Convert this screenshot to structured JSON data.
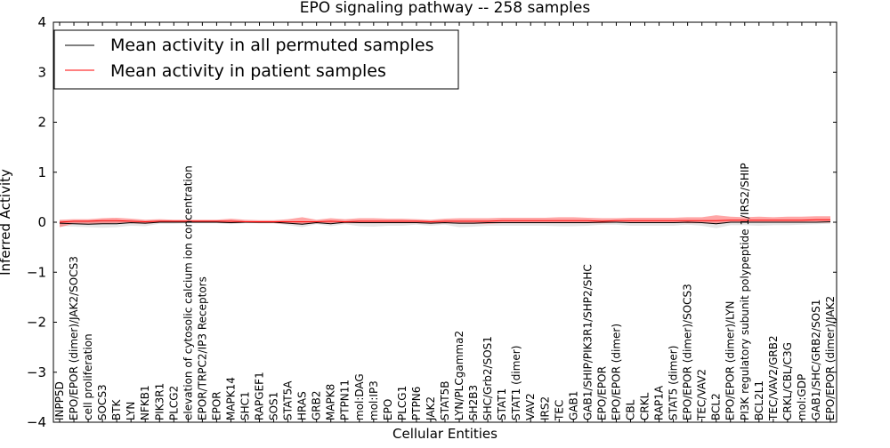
{
  "chart_data": {
    "type": "line",
    "title": "EPO signaling pathway -- 258 samples",
    "xlabel": "Cellular Entities",
    "ylabel": "Inferred Activity",
    "ylim": [
      -4,
      4
    ],
    "yticks": [
      -4,
      -3,
      -2,
      -1,
      0,
      1,
      2,
      3,
      4
    ],
    "ytick_labels": [
      "−4",
      "−3",
      "−2",
      "−1",
      "0",
      "1",
      "2",
      "3",
      "4"
    ],
    "grid": false,
    "legend_position": "top-left",
    "categories": [
      "INPP5D",
      "EPO/EPOR (dimer)/JAK2/SOCS3",
      "cell proliferation",
      "SOCS3",
      "BTK",
      "LYN",
      "NFKB1",
      "PIK3R1",
      "PLCG2",
      "elevation of cytosolic calcium ion concentration",
      "EPOR/TRPC2/IP3 Receptors",
      "EPOR",
      "MAPK14",
      "SHC1",
      "RAPGEF1",
      "SOS1",
      "STAT5A",
      "HRAS",
      "GRB2",
      "MAPK8",
      "PTPN11",
      "mol:DAG",
      "mol:IP3",
      "EPO",
      "PLCG1",
      "PTPN6",
      "JAK2",
      "STAT5B",
      "LYN/PLCgamma2",
      "SH2B3",
      "SHC/Grb2/SOS1",
      "STAT1",
      "STAT1 (dimer)",
      "VAV2",
      "IRS2",
      "TEC",
      "GAB1",
      "GAB1/SHIP/PIK3R1/SHP2/SHC",
      "EPO/EPOR",
      "EPO/EPOR (dimer)",
      "CBL",
      "CRKL",
      "RAP1A",
      "STAT5 (dimer)",
      "EPO/EPOR (dimer)/SOCS3",
      "TEC/VAV2",
      "BCL2",
      "EPO/EPOR (dimer)/LYN",
      "PI3K regulatory subunit polypeptide 1/IRS2/SHIP",
      "BCL2L1",
      "TEC/VAV2/GRB2",
      "CRKL/CBL/C3G",
      "mol:GDP",
      "GAB1/SHC/GRB2/SOS1",
      "EPO/EPOR (dimer)/JAK2"
    ],
    "series": [
      {
        "name": "Mean activity in all permuted samples",
        "color": "#000000",
        "values": [
          -0.02,
          -0.03,
          -0.04,
          -0.03,
          -0.03,
          -0.01,
          -0.02,
          0.0,
          0.0,
          0.0,
          0.0,
          0.0,
          -0.01,
          0.0,
          0.0,
          0.0,
          -0.02,
          -0.04,
          -0.01,
          -0.03,
          0.0,
          -0.01,
          -0.01,
          -0.01,
          -0.01,
          -0.01,
          -0.02,
          -0.01,
          -0.02,
          -0.02,
          -0.01,
          -0.01,
          -0.01,
          -0.01,
          -0.01,
          -0.01,
          -0.01,
          -0.01,
          0.0,
          0.0,
          -0.01,
          -0.01,
          -0.01,
          -0.01,
          0.0,
          -0.01,
          -0.03,
          0.0,
          0.0,
          0.0,
          0.0,
          0.0,
          0.0,
          0.0,
          0.01
        ],
        "band_upper": [
          0.03,
          0.02,
          0.02,
          0.02,
          0.02,
          0.02,
          0.02,
          0.02,
          0.01,
          0.01,
          0.01,
          0.01,
          0.01,
          0.01,
          0.01,
          0.01,
          0.01,
          0.01,
          0.01,
          0.01,
          0.01,
          0.01,
          0.01,
          0.01,
          0.01,
          0.01,
          0.01,
          0.01,
          0.01,
          0.01,
          0.01,
          0.01,
          0.01,
          0.01,
          0.01,
          0.01,
          0.01,
          0.01,
          0.01,
          0.01,
          0.01,
          0.01,
          0.01,
          0.01,
          0.01,
          0.01,
          0.01,
          0.01,
          0.01,
          0.01,
          0.01,
          0.01,
          0.01,
          0.01,
          0.02
        ],
        "band_lower": [
          -0.08,
          -0.09,
          -0.1,
          -0.11,
          -0.1,
          -0.07,
          -0.08,
          -0.03,
          -0.03,
          -0.02,
          -0.02,
          -0.02,
          -0.04,
          -0.02,
          -0.02,
          -0.02,
          -0.06,
          -0.1,
          -0.04,
          -0.08,
          -0.04,
          -0.08,
          -0.09,
          -0.07,
          -0.07,
          -0.05,
          -0.07,
          -0.05,
          -0.1,
          -0.09,
          -0.07,
          -0.07,
          -0.07,
          -0.07,
          -0.07,
          -0.08,
          -0.08,
          -0.07,
          -0.05,
          -0.05,
          -0.07,
          -0.07,
          -0.07,
          -0.07,
          -0.05,
          -0.07,
          -0.12,
          -0.06,
          -0.06,
          -0.07,
          -0.06,
          -0.06,
          -0.05,
          -0.04,
          -0.03
        ]
      },
      {
        "name": "Mean activity in patient samples",
        "color": "#ff0000",
        "values": [
          0.0,
          0.02,
          0.02,
          0.03,
          0.03,
          0.02,
          0.01,
          0.02,
          0.02,
          0.02,
          0.02,
          0.02,
          0.02,
          0.01,
          0.01,
          0.01,
          0.01,
          0.01,
          0.01,
          0.02,
          0.01,
          0.02,
          0.02,
          0.02,
          0.02,
          0.02,
          0.01,
          0.02,
          0.02,
          0.02,
          0.02,
          0.03,
          0.03,
          0.03,
          0.03,
          0.03,
          0.03,
          0.03,
          0.02,
          0.03,
          0.03,
          0.03,
          0.03,
          0.03,
          0.03,
          0.03,
          0.03,
          0.04,
          0.04,
          0.04,
          0.04,
          0.04,
          0.04,
          0.05,
          0.05
        ],
        "band_upper": [
          0.05,
          0.06,
          0.06,
          0.08,
          0.09,
          0.07,
          0.05,
          0.06,
          0.05,
          0.05,
          0.05,
          0.05,
          0.07,
          0.05,
          0.04,
          0.04,
          0.06,
          0.1,
          0.05,
          0.08,
          0.06,
          0.08,
          0.08,
          0.07,
          0.07,
          0.06,
          0.05,
          0.07,
          0.08,
          0.08,
          0.08,
          0.09,
          0.09,
          0.09,
          0.09,
          0.1,
          0.1,
          0.09,
          0.08,
          0.08,
          0.09,
          0.09,
          0.09,
          0.09,
          0.1,
          0.1,
          0.14,
          0.11,
          0.1,
          0.11,
          0.1,
          0.11,
          0.11,
          0.12,
          0.12
        ],
        "band_lower": [
          -0.1,
          -0.03,
          -0.03,
          -0.03,
          -0.02,
          -0.02,
          -0.03,
          -0.01,
          -0.01,
          -0.01,
          -0.01,
          -0.01,
          -0.02,
          -0.01,
          -0.02,
          -0.02,
          -0.03,
          -0.05,
          -0.02,
          -0.03,
          -0.02,
          -0.02,
          -0.02,
          -0.02,
          -0.02,
          -0.02,
          -0.03,
          -0.02,
          -0.03,
          -0.03,
          -0.03,
          -0.02,
          -0.02,
          -0.02,
          -0.02,
          -0.02,
          -0.02,
          -0.02,
          -0.02,
          -0.01,
          -0.01,
          -0.01,
          -0.01,
          -0.01,
          -0.02,
          -0.02,
          -0.04,
          -0.01,
          -0.01,
          -0.01,
          -0.01,
          -0.01,
          -0.01,
          -0.01,
          -0.01
        ]
      }
    ]
  }
}
